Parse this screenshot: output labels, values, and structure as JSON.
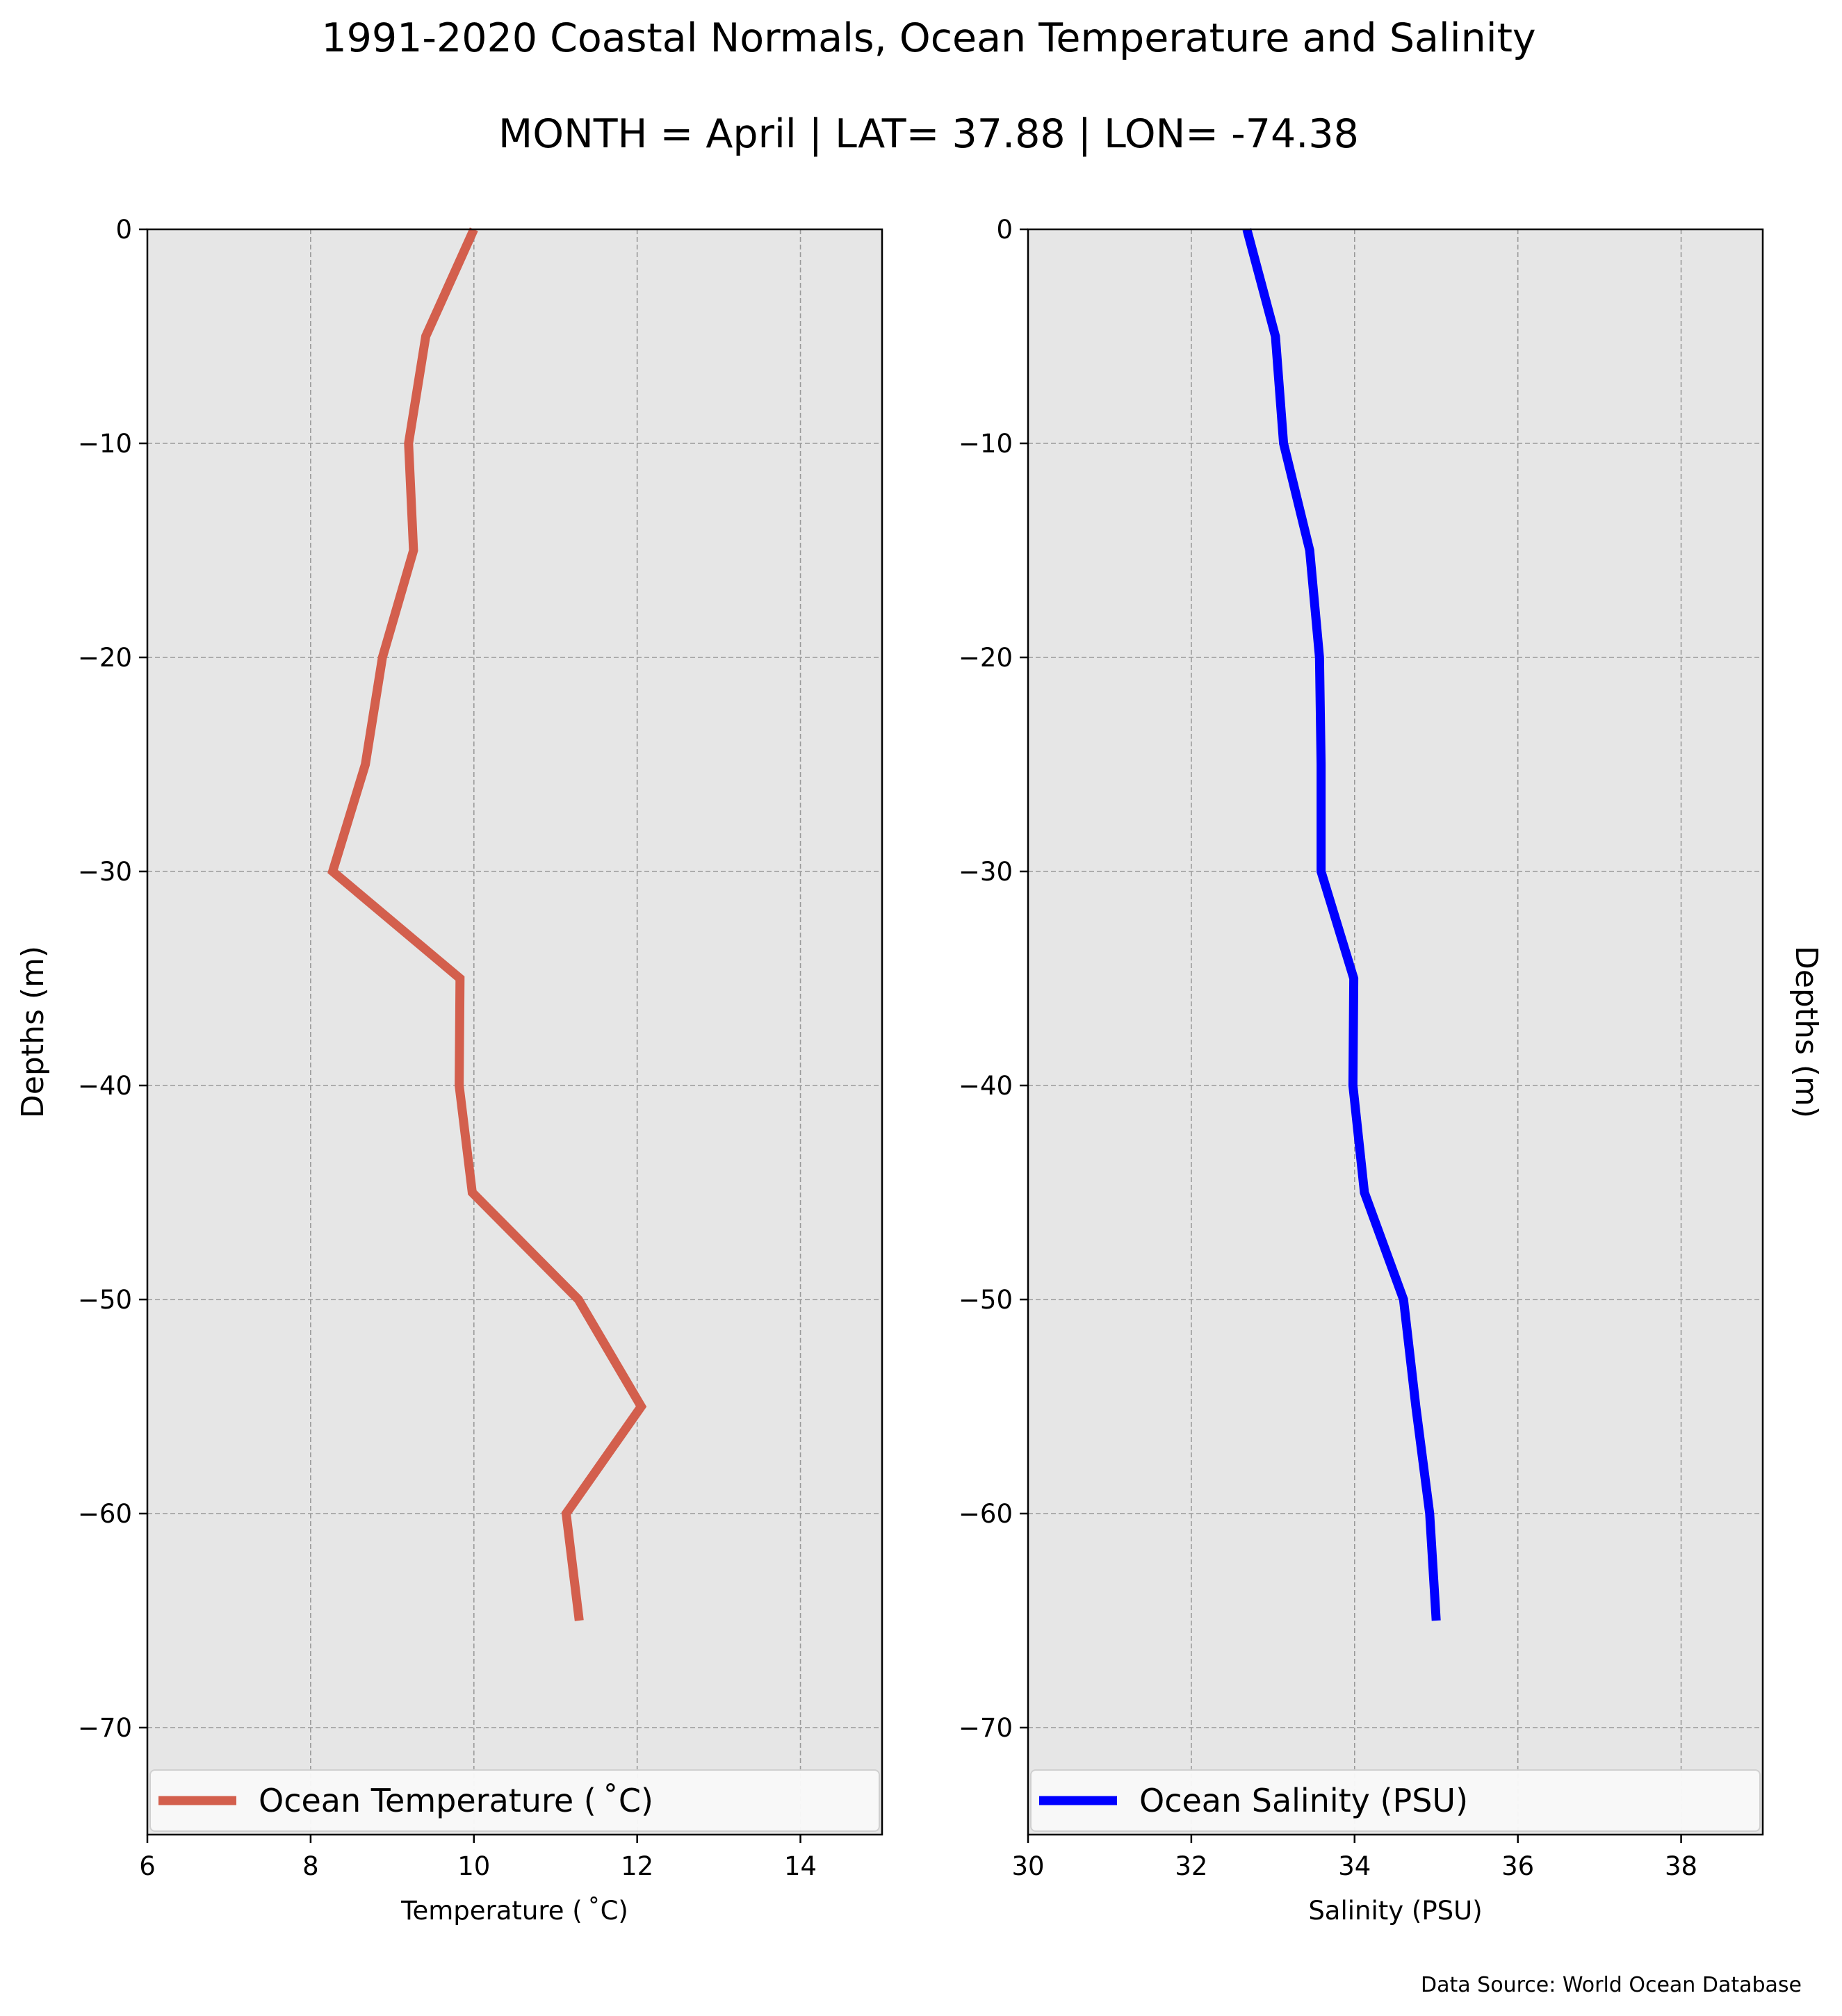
{
  "title": "1991-2020 Coastal Normals, Ocean Temperature and Salinity",
  "subtitle": "MONTH = April | LAT= 37.88 | LON= -74.38",
  "source_note": "Data Source: World Ocean Database",
  "colors": {
    "temperature": "#d35f4d",
    "salinity": "#0000ff",
    "plot_bg": "#e6e6e6",
    "grid": "#9a9a9a"
  },
  "chart_data": [
    {
      "type": "line",
      "xlabel": "Temperature ($^\\circ$C)",
      "xlabel_display": "Temperature ( ˚C)",
      "ylabel": "Depths (m)",
      "xlim": [
        6,
        15
      ],
      "ylim": [
        -75,
        0
      ],
      "xticks": [
        6,
        8,
        10,
        12,
        14
      ],
      "xtick_labels": [
        "6",
        "8",
        "10",
        "12",
        "14"
      ],
      "yticks": [
        0,
        -10,
        -20,
        -30,
        -40,
        -50,
        -60,
        -70
      ],
      "ytick_labels": [
        "0",
        "−10",
        "−20",
        "−30",
        "−40",
        "−50",
        "−60",
        "−70"
      ],
      "ylabel_side": "left",
      "grid": true,
      "legend_position": "bottom",
      "series": [
        {
          "name": "Ocean Temperature ( ˚C)",
          "color": "#d35f4d",
          "x": [
            10.0,
            9.41,
            9.2,
            9.26,
            8.88,
            8.67,
            8.27,
            9.83,
            9.82,
            9.98,
            11.28,
            12.05,
            11.13,
            11.29
          ],
          "y": [
            0,
            -5,
            -10,
            -15,
            -20,
            -25,
            -30,
            -35,
            -40,
            -45,
            -50,
            -55,
            -60,
            -65
          ]
        }
      ]
    },
    {
      "type": "line",
      "xlabel": "Salinity (PSU)",
      "ylabel": "Depths (m)",
      "xlim": [
        30,
        39
      ],
      "ylim": [
        -75,
        0
      ],
      "xticks": [
        30,
        32,
        34,
        36,
        38
      ],
      "xtick_labels": [
        "30",
        "32",
        "34",
        "36",
        "38"
      ],
      "yticks": [
        0,
        -10,
        -20,
        -30,
        -40,
        -50,
        -60,
        -70
      ],
      "ytick_labels": [
        "0",
        "−10",
        "−20",
        "−30",
        "−40",
        "−50",
        "−60",
        "−70"
      ],
      "ylabel_side": "right",
      "grid": true,
      "legend_position": "bottom",
      "series": [
        {
          "name": "Ocean Salinity (PSU)",
          "color": "#0000ff",
          "x": [
            32.68,
            33.03,
            33.13,
            33.45,
            33.57,
            33.59,
            33.59,
            33.99,
            33.98,
            34.12,
            34.6,
            34.75,
            34.92,
            35.0
          ],
          "y": [
            0,
            -5,
            -10,
            -15,
            -20,
            -25,
            -30,
            -35,
            -40,
            -45,
            -50,
            -55,
            -60,
            -65
          ]
        }
      ]
    }
  ]
}
